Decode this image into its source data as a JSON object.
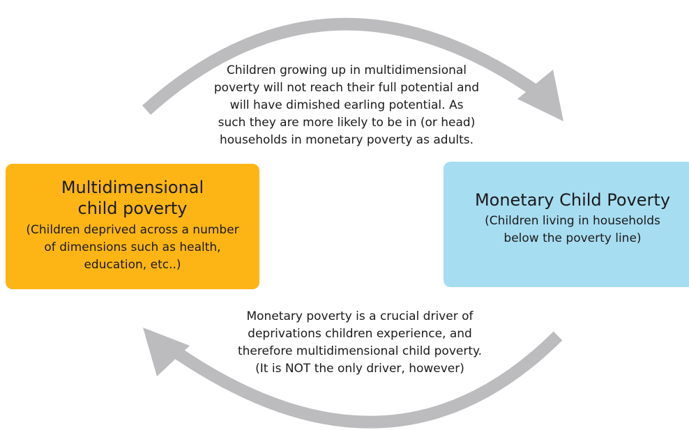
{
  "nodes": [
    {
      "title": [
        "Multidimensional",
        "child poverty"
      ],
      "subtitle": [
        "(Children deprived across a number",
        "of dimensions such as health,",
        "education, etc..)"
      ]
    },
    {
      "title": [
        "Monetary Child Poverty"
      ],
      "subtitle": [
        "(Children living in households",
        "below the poverty line)"
      ]
    }
  ],
  "edges": [
    {
      "label": [
        "Children growing up in multidimensional",
        "poverty will not reach their full potential and",
        "will have dimished earling potential. As",
        "such they are more likely to be in (or head)",
        "households in monetary poverty as adults."
      ]
    },
    {
      "label": [
        "Monetary poverty is a crucial driver of",
        "deprivations children experience, and",
        "therefore multidimensional child poverty.",
        "(It is NOT the only driver, however)"
      ]
    }
  ]
}
